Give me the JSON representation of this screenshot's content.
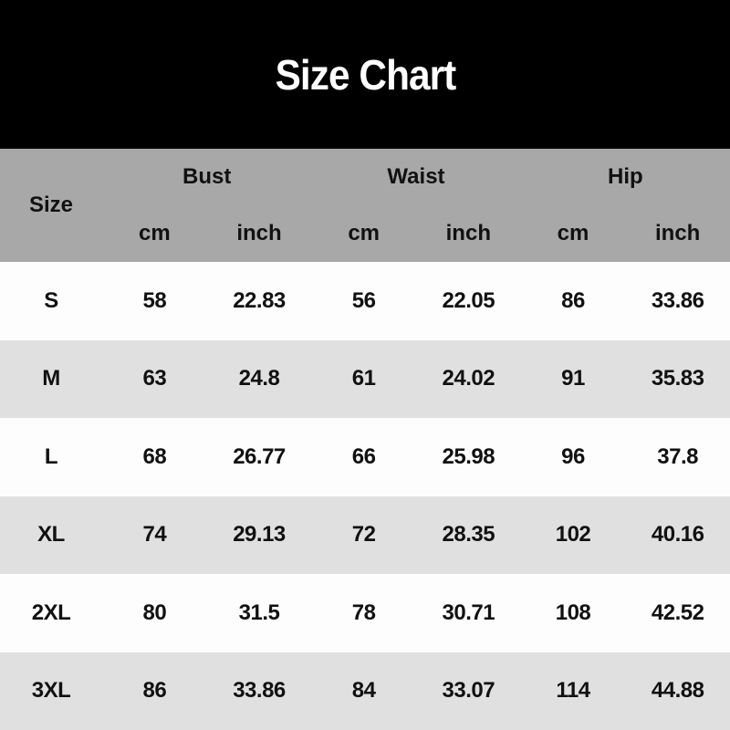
{
  "title": "Size Chart",
  "colors": {
    "banner-bg": "#000000",
    "header-bg": "#a8a8a8",
    "row-bg": "#fdfdfd",
    "row-alt-bg": "#e0e0e0",
    "title-color": "#ffffff",
    "text-color": "#111111"
  },
  "table": {
    "size_label": "Size",
    "groups": [
      {
        "label": "Bust",
        "sub": [
          "cm",
          "inch"
        ]
      },
      {
        "label": "Waist",
        "sub": [
          "cm",
          "inch"
        ]
      },
      {
        "label": "Hip",
        "sub": [
          "cm",
          "inch"
        ]
      }
    ],
    "rows": [
      {
        "size": "S",
        "values": [
          "58",
          "22.83",
          "56",
          "22.05",
          "86",
          "33.86"
        ]
      },
      {
        "size": "M",
        "values": [
          "63",
          "24.8",
          "61",
          "24.02",
          "91",
          "35.83"
        ]
      },
      {
        "size": "L",
        "values": [
          "68",
          "26.77",
          "66",
          "25.98",
          "96",
          "37.8"
        ]
      },
      {
        "size": "XL",
        "values": [
          "74",
          "29.13",
          "72",
          "28.35",
          "102",
          "40.16"
        ]
      },
      {
        "size": "2XL",
        "values": [
          "80",
          "31.5",
          "78",
          "30.71",
          "108",
          "42.52"
        ]
      },
      {
        "size": "3XL",
        "values": [
          "86",
          "33.86",
          "84",
          "33.07",
          "114",
          "44.88"
        ]
      }
    ]
  },
  "chart_data": {
    "type": "table",
    "title": "Size Chart",
    "columns": [
      "Size",
      "Bust cm",
      "Bust inch",
      "Waist cm",
      "Waist inch",
      "Hip cm",
      "Hip inch"
    ],
    "rows": [
      [
        "S",
        58,
        22.83,
        56,
        22.05,
        86,
        33.86
      ],
      [
        "M",
        63,
        24.8,
        61,
        24.02,
        91,
        35.83
      ],
      [
        "L",
        68,
        26.77,
        66,
        25.98,
        96,
        37.8
      ],
      [
        "XL",
        74,
        29.13,
        72,
        28.35,
        102,
        40.16
      ],
      [
        "2XL",
        80,
        31.5,
        78,
        30.71,
        108,
        42.52
      ],
      [
        "3XL",
        86,
        33.86,
        84,
        33.07,
        114,
        44.88
      ]
    ]
  }
}
